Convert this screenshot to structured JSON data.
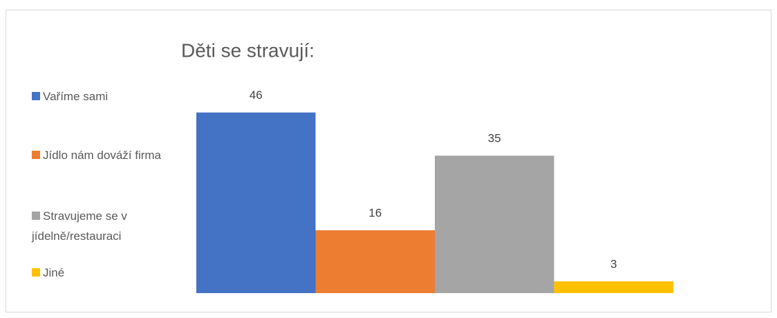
{
  "chart_data": {
    "type": "bar",
    "title": "Děti se stravují:",
    "categories": [
      null
    ],
    "series": [
      {
        "name": "Vaříme sami",
        "color": "#4472c4",
        "values": [
          46
        ]
      },
      {
        "name": "Jídlo nám dováží firma",
        "color": "#ed7d31",
        "values": [
          16
        ]
      },
      {
        "name": "Stravujeme se v jídelně/restauraci",
        "color": "#a5a5a5",
        "values": [
          35
        ]
      },
      {
        "name": "Jiné",
        "color": "#ffc000",
        "values": [
          3
        ]
      }
    ],
    "ylim": [
      0,
      50
    ],
    "legend": "left"
  }
}
